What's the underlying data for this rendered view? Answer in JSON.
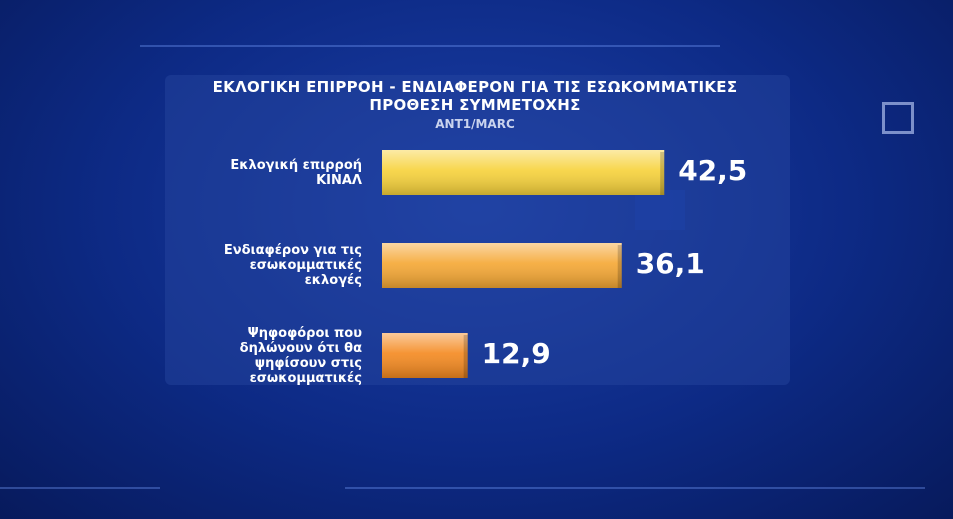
{
  "chart_data": {
    "type": "bar",
    "title": "ΕΚΛΟΓΙΚΗ ΕΠΙΡΡΟΗ - ΕΝΔΙΑΦΕΡΟΝ ΓΙΑ ΤΙΣ ΕΣΩΚΟΜΜΑΤΙΚΕΣ ΠΡΟΘΕΣΗ ΣΥΜΜΕΤΟΧΗΣ",
    "subtitle": "ANT1/MARC",
    "categories": [
      "Εκλογική επιρροή ΚΙΝΑΛ",
      "Ενδιαφέρον για τις εσωκομματικές εκλογές",
      "Ψηφοφόροι που δηλώνουν ότι θα ψηφίσουν στις εσωκομματικές"
    ],
    "values": [
      42.5,
      36.1,
      12.9
    ],
    "value_labels": [
      "42,5",
      "36,1",
      "12,9"
    ],
    "colors": [
      "#f7d23a",
      "#f5a733",
      "#f4891f"
    ]
  }
}
